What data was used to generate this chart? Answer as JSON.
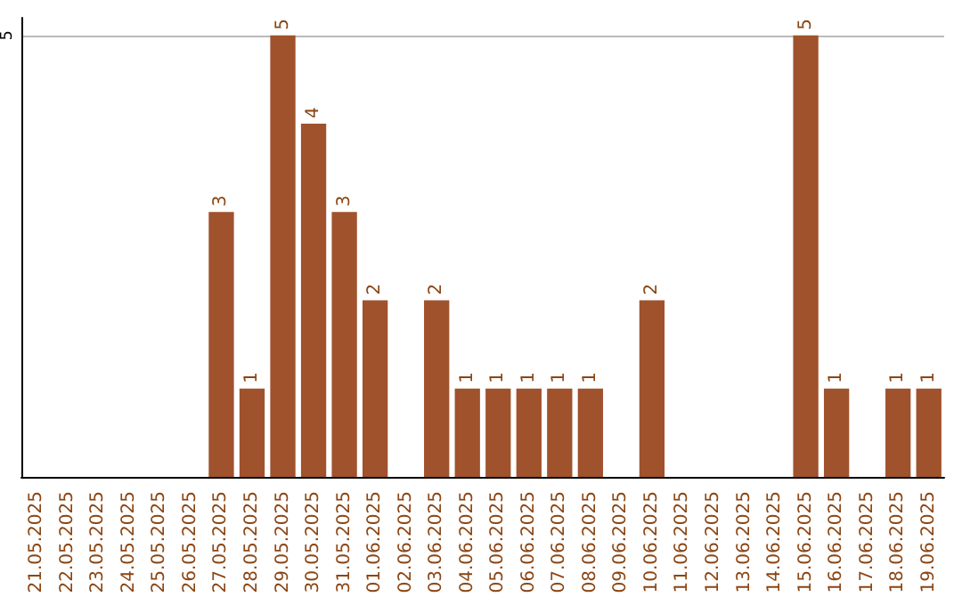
{
  "chart_data": {
    "type": "bar",
    "categories": [
      "21.05.2025",
      "22.05.2025",
      "23.05.2025",
      "24.05.2025",
      "25.05.2025",
      "26.05.2025",
      "27.05.2025",
      "28.05.2025",
      "29.05.2025",
      "30.05.2025",
      "31.05.2025",
      "01.06.2025",
      "02.06.2025",
      "03.06.2025",
      "04.06.2025",
      "05.06.2025",
      "06.06.2025",
      "07.06.2025",
      "08.06.2025",
      "09.06.2025",
      "10.06.2025",
      "11.06.2025",
      "12.06.2025",
      "13.06.2025",
      "14.06.2025",
      "15.06.2025",
      "16.06.2025",
      "17.06.2025",
      "18.06.2025",
      "19.06.2025"
    ],
    "values": [
      0,
      0,
      0,
      0,
      0,
      0,
      3,
      1,
      5,
      4,
      3,
      2,
      0,
      2,
      1,
      1,
      1,
      1,
      1,
      0,
      2,
      0,
      0,
      0,
      0,
      5,
      1,
      0,
      1,
      1
    ],
    "value_labels": [
      null,
      null,
      null,
      null,
      null,
      null,
      "3",
      "1",
      "5",
      "4",
      "3",
      "2",
      null,
      "2",
      "1",
      "1",
      "1",
      "1",
      "1",
      null,
      "2",
      null,
      null,
      null,
      null,
      "5",
      "1",
      null,
      "1",
      "1"
    ],
    "color": "#a0522d",
    "ylim": [
      0,
      5.2
    ],
    "yticks": [
      5
    ],
    "grid": "y"
  }
}
